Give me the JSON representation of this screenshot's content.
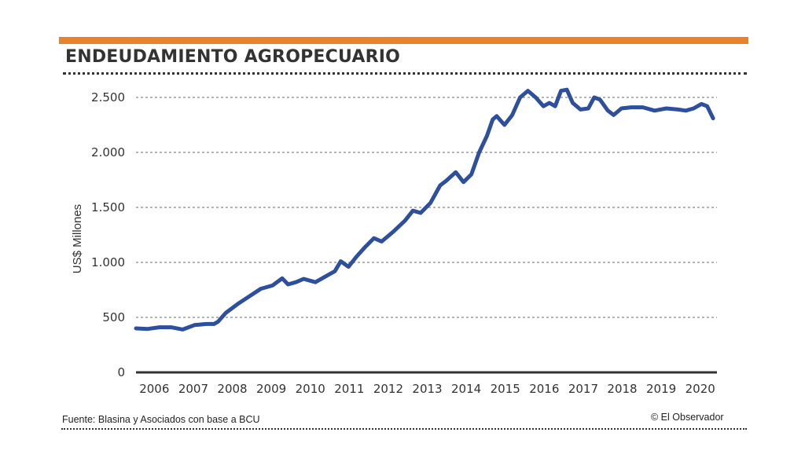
{
  "header": {
    "title": "ENDEUDAMIENTO AGROPECUARIO"
  },
  "footer": {
    "source": "Fuente: Blasina y Asociados con base a BCU",
    "credit": "© El Observador"
  },
  "colors": {
    "accent_bar": "#e8832a",
    "line": "#2e4f9c",
    "text": "#333333",
    "grid": "#888888"
  },
  "chart_data": {
    "type": "line",
    "title": "ENDEUDAMIENTO AGROPECUARIO",
    "xlabel": "",
    "ylabel": "US$ Millones",
    "ylim": [
      0,
      2500
    ],
    "xlim": [
      2006.0,
      2020.9
    ],
    "grid": true,
    "y_ticks": [
      {
        "value": 0,
        "label": "0"
      },
      {
        "value": 500,
        "label": "500"
      },
      {
        "value": 1000,
        "label": "1.000"
      },
      {
        "value": 1500,
        "label": "1.500"
      },
      {
        "value": 2000,
        "label": "2.000"
      },
      {
        "value": 2500,
        "label": "2.500"
      }
    ],
    "x_ticks": [
      "2006",
      "2007",
      "2008",
      "2009",
      "2010",
      "2011",
      "2012",
      "2013",
      "2014",
      "2015",
      "2016",
      "2017",
      "2018",
      "2019",
      "2020"
    ],
    "series": [
      {
        "name": "Endeudamiento agropecuario",
        "x": [
          2006.0,
          2006.3,
          2006.6,
          2006.9,
          2007.2,
          2007.5,
          2007.8,
          2008.0,
          2008.1,
          2008.3,
          2008.6,
          2008.9,
          2009.2,
          2009.5,
          2009.75,
          2009.9,
          2010.1,
          2010.3,
          2010.6,
          2010.9,
          2011.1,
          2011.25,
          2011.45,
          2011.65,
          2011.85,
          2012.1,
          2012.3,
          2012.6,
          2012.9,
          2013.1,
          2013.3,
          2013.55,
          2013.8,
          2013.95,
          2014.2,
          2014.4,
          2014.6,
          2014.8,
          2015.0,
          2015.15,
          2015.25,
          2015.45,
          2015.65,
          2015.85,
          2016.05,
          2016.25,
          2016.45,
          2016.6,
          2016.75,
          2016.9,
          2017.05,
          2017.2,
          2017.4,
          2017.6,
          2017.75,
          2017.9,
          2018.1,
          2018.25,
          2018.45,
          2018.7,
          2019.0,
          2019.3,
          2019.6,
          2019.9,
          2020.1,
          2020.3,
          2020.5,
          2020.65,
          2020.8
        ],
        "values": [
          400,
          395,
          410,
          410,
          390,
          430,
          440,
          440,
          460,
          540,
          620,
          690,
          760,
          790,
          855,
          800,
          820,
          850,
          820,
          880,
          920,
          1010,
          960,
          1050,
          1130,
          1220,
          1190,
          1280,
          1380,
          1470,
          1450,
          1540,
          1700,
          1740,
          1820,
          1730,
          1800,
          2000,
          2150,
          2300,
          2330,
          2250,
          2340,
          2500,
          2560,
          2500,
          2420,
          2450,
          2420,
          2560,
          2570,
          2450,
          2390,
          2400,
          2500,
          2480,
          2380,
          2340,
          2400,
          2410,
          2410,
          2380,
          2400,
          2390,
          2380,
          2400,
          2440,
          2420,
          2310
        ]
      }
    ]
  }
}
